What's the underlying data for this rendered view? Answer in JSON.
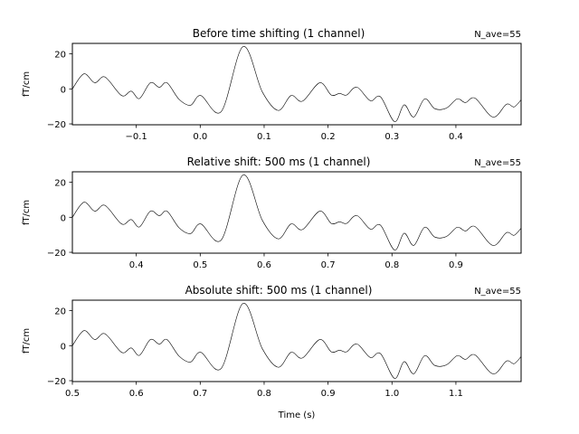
{
  "chart_data": [
    {
      "type": "line",
      "title": "Before time shifting (1 channel)",
      "annotation": "N_ave=55",
      "annotation_main": "N",
      "annotation_sub": "ave",
      "annotation_value": "=55",
      "xlabel": "",
      "ylabel": "fT/cm",
      "xlim": [
        -0.2,
        0.502
      ],
      "ylim": [
        -20.5,
        26
      ],
      "xticks": [
        "−0.1",
        "0.0",
        "0.1",
        "0.2",
        "0.3",
        "0.4"
      ],
      "xtick_values": [
        -0.1,
        0.0,
        0.1,
        0.2,
        0.3,
        0.4
      ],
      "yticks": [
        "20",
        "0",
        "−20"
      ],
      "ytick_values": [
        20,
        0,
        -20
      ],
      "grid": false,
      "color": "#000000",
      "x": [
        -0.2,
        -0.182,
        -0.165,
        -0.149,
        -0.123,
        -0.108,
        -0.095,
        -0.078,
        -0.064,
        -0.052,
        -0.033,
        -0.015,
        0.001,
        0.033,
        0.067,
        0.097,
        0.122,
        0.142,
        0.16,
        0.187,
        0.205,
        0.218,
        0.229,
        0.245,
        0.266,
        0.282,
        0.304,
        0.319,
        0.334,
        0.351,
        0.367,
        0.385,
        0.402,
        0.415,
        0.43,
        0.458,
        0.479,
        0.491,
        0.502
      ],
      "y": [
        0,
        8.6,
        3.5,
        6.8,
        -3.8,
        -1.3,
        -5.5,
        3.5,
        0.9,
        3.5,
        -6.0,
        -9.3,
        -3.8,
        -12.9,
        24.2,
        -1.6,
        -12.3,
        -3.8,
        -7.0,
        3.5,
        -3.5,
        -2.6,
        -3.5,
        1.0,
        -6.7,
        -4.5,
        -18.7,
        -9.1,
        -16.1,
        -5.7,
        -11.3,
        -11.0,
        -5.7,
        -7.8,
        -5.3,
        -16.1,
        -8.8,
        -10.3,
        -6.2
      ]
    },
    {
      "type": "line",
      "title": "Relative shift: 500 ms (1 channel)",
      "annotation": "N_ave=55",
      "annotation_main": "N",
      "annotation_sub": "ave",
      "annotation_value": "=55",
      "xlabel": "",
      "ylabel": "fT/cm",
      "xlim": [
        0.3,
        1.002
      ],
      "ylim": [
        -20.5,
        26
      ],
      "xticks": [
        "0.4",
        "0.5",
        "0.6",
        "0.7",
        "0.8",
        "0.9"
      ],
      "xtick_values": [
        0.4,
        0.5,
        0.6,
        0.7,
        0.8,
        0.9
      ],
      "yticks": [
        "20",
        "0",
        "−20"
      ],
      "ytick_values": [
        20,
        0,
        -20
      ],
      "grid": false,
      "color": "#000000",
      "x": [
        0.3,
        0.318,
        0.335,
        0.351,
        0.377,
        0.392,
        0.405,
        0.422,
        0.436,
        0.448,
        0.467,
        0.485,
        0.501,
        0.533,
        0.567,
        0.597,
        0.622,
        0.642,
        0.66,
        0.687,
        0.705,
        0.718,
        0.729,
        0.745,
        0.766,
        0.782,
        0.804,
        0.819,
        0.834,
        0.851,
        0.867,
        0.885,
        0.902,
        0.915,
        0.93,
        0.958,
        0.979,
        0.991,
        1.002
      ],
      "y": [
        0,
        8.6,
        3.5,
        6.8,
        -3.8,
        -1.3,
        -5.5,
        3.5,
        0.9,
        3.5,
        -6.0,
        -9.3,
        -3.8,
        -12.9,
        24.2,
        -1.6,
        -12.3,
        -3.8,
        -7.0,
        3.5,
        -3.5,
        -2.6,
        -3.5,
        1.0,
        -6.7,
        -4.5,
        -18.7,
        -9.1,
        -16.1,
        -5.7,
        -11.3,
        -11.0,
        -5.7,
        -7.8,
        -5.3,
        -16.1,
        -8.8,
        -10.3,
        -6.2
      ]
    },
    {
      "type": "line",
      "title": "Absolute shift: 500 ms (1 channel)",
      "annotation": "N_ave=55",
      "annotation_main": "N",
      "annotation_sub": "ave",
      "annotation_value": "=55",
      "xlabel": "Time (s)",
      "ylabel": "fT/cm",
      "xlim": [
        0.5,
        1.202
      ],
      "ylim": [
        -20.5,
        26
      ],
      "xticks": [
        "0.5",
        "0.6",
        "0.7",
        "0.8",
        "0.9",
        "1.0",
        "1.1"
      ],
      "xtick_values": [
        0.5,
        0.6,
        0.7,
        0.8,
        0.9,
        1.0,
        1.1
      ],
      "yticks": [
        "20",
        "0",
        "−20"
      ],
      "ytick_values": [
        20,
        0,
        -20
      ],
      "grid": false,
      "color": "#000000",
      "x": [
        0.5,
        0.518,
        0.535,
        0.551,
        0.577,
        0.592,
        0.605,
        0.622,
        0.636,
        0.648,
        0.667,
        0.685,
        0.701,
        0.733,
        0.767,
        0.797,
        0.822,
        0.842,
        0.86,
        0.887,
        0.905,
        0.918,
        0.929,
        0.945,
        0.966,
        0.982,
        1.004,
        1.019,
        1.034,
        1.051,
        1.067,
        1.085,
        1.102,
        1.115,
        1.13,
        1.158,
        1.179,
        1.191,
        1.202
      ],
      "y": [
        0,
        8.6,
        3.5,
        6.8,
        -3.8,
        -1.3,
        -5.5,
        3.5,
        0.9,
        3.5,
        -6.0,
        -9.3,
        -3.8,
        -12.9,
        24.2,
        -1.6,
        -12.3,
        -3.8,
        -7.0,
        3.5,
        -3.5,
        -2.6,
        -3.5,
        1.0,
        -6.7,
        -4.5,
        -18.7,
        -9.1,
        -16.1,
        -5.7,
        -11.3,
        -11.0,
        -5.7,
        -7.8,
        -5.3,
        -16.1,
        -8.8,
        -10.3,
        -6.2
      ]
    }
  ]
}
